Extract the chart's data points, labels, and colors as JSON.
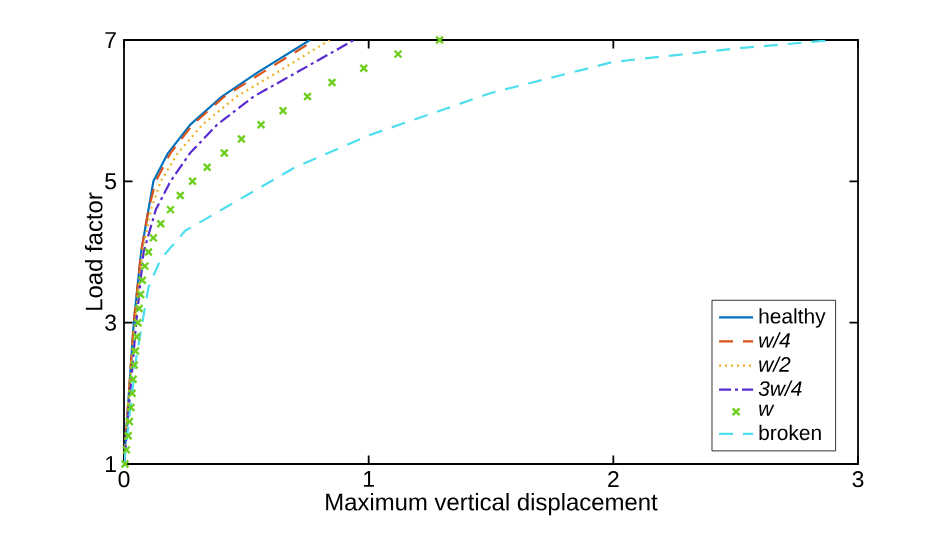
{
  "chart_data": {
    "type": "line",
    "xlabel": "Maximum vertical displacement",
    "ylabel": "Load factor",
    "xlim": [
      0,
      3
    ],
    "ylim": [
      1,
      7
    ],
    "xticks": [
      0,
      1,
      2,
      3
    ],
    "yticks": [
      1,
      3,
      5,
      7
    ],
    "grid": false,
    "legend": "bottom right",
    "series": [
      {
        "name": "healthy",
        "color": "#0072bd",
        "line_style": "solid",
        "x": [
          0,
          0.02,
          0.04,
          0.07,
          0.1,
          0.12,
          0.18,
          0.27,
          0.4,
          0.55,
          0.76
        ],
        "values": [
          1,
          2,
          3,
          4,
          4.6,
          5,
          5.4,
          5.8,
          6.2,
          6.55,
          7
        ]
      },
      {
        "name": "*w/4*",
        "color": "#d95319",
        "line_style": "dashed",
        "x": [
          0,
          0.02,
          0.04,
          0.07,
          0.1,
          0.13,
          0.19,
          0.28,
          0.41,
          0.57,
          0.78
        ],
        "values": [
          1,
          2,
          3,
          4,
          4.6,
          5,
          5.4,
          5.8,
          6.2,
          6.55,
          7
        ]
      },
      {
        "name": "*w/2*",
        "color": "#edb120",
        "line_style": "dotted",
        "x": [
          0,
          0.02,
          0.045,
          0.075,
          0.11,
          0.15,
          0.22,
          0.32,
          0.46,
          0.63,
          0.84
        ],
        "values": [
          1,
          2,
          3,
          4,
          4.6,
          5,
          5.4,
          5.8,
          6.2,
          6.55,
          7
        ]
      },
      {
        "name": "*3w/4*",
        "color": "#5a2bd0",
        "line_style": "dashdot",
        "x": [
          0,
          0.025,
          0.05,
          0.08,
          0.13,
          0.19,
          0.27,
          0.38,
          0.53,
          0.71,
          0.94
        ],
        "values": [
          1,
          2,
          3,
          4,
          4.6,
          5,
          5.4,
          5.8,
          6.2,
          6.55,
          7
        ]
      },
      {
        "name": "*w*",
        "color": "#6fcf1f",
        "type": "scatter",
        "marker": "cross",
        "x": [
          0.004,
          0.01,
          0.017,
          0.022,
          0.028,
          0.033,
          0.037,
          0.042,
          0.047,
          0.052,
          0.057,
          0.062,
          0.068,
          0.075,
          0.085,
          0.1,
          0.12,
          0.15,
          0.19,
          0.23,
          0.28,
          0.34,
          0.41,
          0.48,
          0.56,
          0.65,
          0.75,
          0.85,
          0.98,
          1.12,
          1.29
        ],
        "values": [
          1,
          1.2,
          1.4,
          1.6,
          1.8,
          2,
          2.2,
          2.4,
          2.6,
          2.8,
          3,
          3.2,
          3.4,
          3.6,
          3.8,
          4,
          4.2,
          4.4,
          4.6,
          4.8,
          5,
          5.2,
          5.4,
          5.6,
          5.8,
          6,
          6.2,
          6.4,
          6.6,
          6.8,
          7
        ]
      },
      {
        "name": "broken",
        "color": "#4ddfee",
        "line_style": "dashed",
        "x": [
          0,
          0.05,
          0.1,
          0.15,
          0.25,
          0.42,
          0.7,
          1,
          1.5,
          2,
          2.5,
          2.9
        ],
        "values": [
          1,
          2.5,
          3.5,
          3.9,
          4.3,
          4.64,
          5.2,
          5.65,
          6.25,
          6.69,
          6.88,
          7
        ]
      }
    ]
  }
}
